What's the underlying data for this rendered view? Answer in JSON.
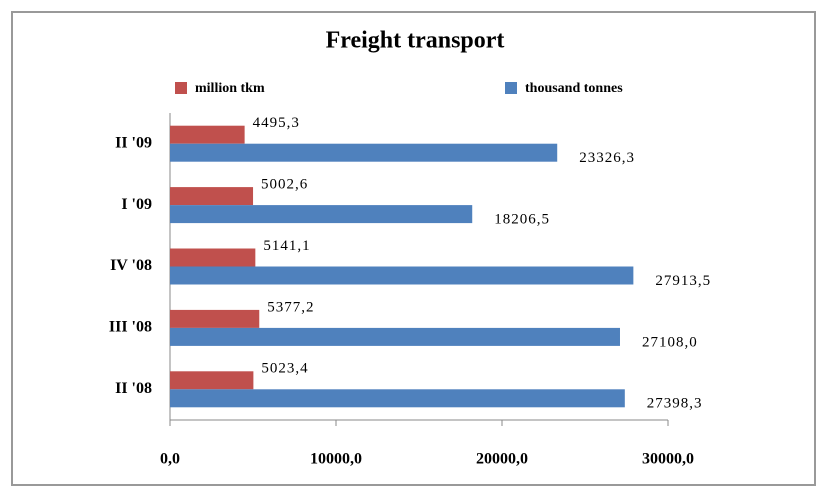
{
  "chart_data": {
    "type": "barh",
    "title": "Freight transport",
    "categories": [
      "II '08",
      "III '08",
      "IV '08",
      "I '09",
      "II '09"
    ],
    "series": [
      {
        "name": "million tkm",
        "color": "#c0504d",
        "values": [
          5023.4,
          5377.2,
          5141.1,
          5002.6,
          4495.3
        ],
        "value_labels": [
          "5023,4",
          "5377,2",
          "5141,1",
          "5002,6",
          "4495,3"
        ]
      },
      {
        "name": "thousand tonnes",
        "color": "#4f81bd",
        "values": [
          27398.3,
          27108.0,
          27913.5,
          18206.5,
          23326.3
        ],
        "value_labels": [
          "27398,3",
          "27108,0",
          "27913,5",
          "18206,5",
          "23326,3"
        ]
      }
    ],
    "xlim": [
      0,
      30000
    ],
    "xticks": [
      {
        "value": 0,
        "label": "0,0"
      },
      {
        "value": 10000,
        "label": "10000,0"
      },
      {
        "value": 20000,
        "label": "20000,0"
      },
      {
        "value": 30000,
        "label": "30000,0"
      }
    ],
    "legend": "top"
  }
}
